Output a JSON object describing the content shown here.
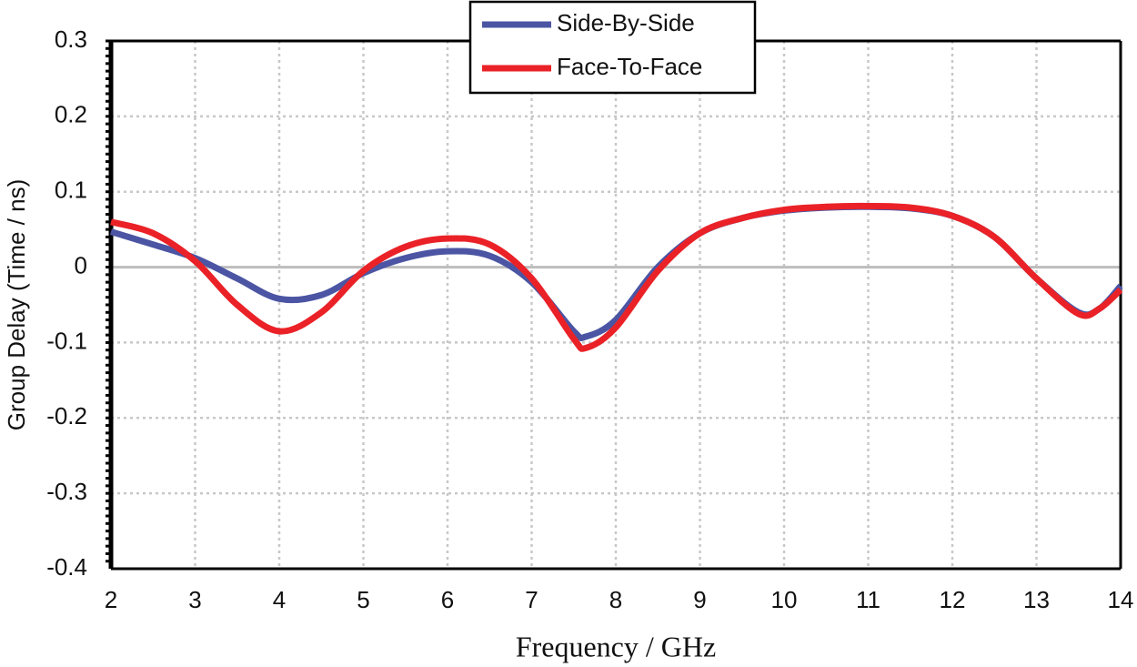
{
  "chart_data": {
    "type": "line",
    "x_label": "Frequency / GHz",
    "y_label": "Group Delay (Time / ns)",
    "x": [
      2,
      2.5,
      3,
      3.5,
      4,
      4.5,
      5,
      5.5,
      6,
      6.5,
      7,
      7.5,
      7.65,
      8,
      8.5,
      9,
      9.5,
      10,
      10.5,
      11,
      11.5,
      12,
      12.5,
      13,
      13.5,
      13.75,
      14
    ],
    "series": [
      {
        "name": "Side-By-Side",
        "color": "#4b55a3",
        "values": [
          0.047,
          0.03,
          0.012,
          -0.015,
          -0.042,
          -0.037,
          -0.008,
          0.012,
          0.021,
          0.015,
          -0.02,
          -0.085,
          -0.092,
          -0.07,
          0.0,
          0.045,
          0.065,
          0.075,
          0.079,
          0.08,
          0.078,
          0.068,
          0.04,
          -0.015,
          -0.06,
          -0.055,
          -0.025
        ]
      },
      {
        "name": "Face-To-Face",
        "color": "#ea2227",
        "values": [
          0.06,
          0.045,
          0.008,
          -0.05,
          -0.085,
          -0.06,
          -0.005,
          0.027,
          0.038,
          0.03,
          -0.015,
          -0.095,
          -0.107,
          -0.08,
          -0.005,
          0.045,
          0.065,
          0.076,
          0.08,
          0.081,
          0.079,
          0.068,
          0.04,
          -0.015,
          -0.062,
          -0.055,
          -0.03
        ]
      }
    ],
    "xlim": [
      2,
      14
    ],
    "xticks": [
      2,
      3,
      4,
      5,
      6,
      7,
      8,
      9,
      10,
      11,
      12,
      13,
      14
    ],
    "ylim": [
      -0.4,
      0.3
    ],
    "yticks": [
      -0.4,
      -0.3,
      -0.2,
      -0.1,
      0,
      0.1,
      0.2,
      0.3
    ],
    "grid": true,
    "legend": "top"
  }
}
